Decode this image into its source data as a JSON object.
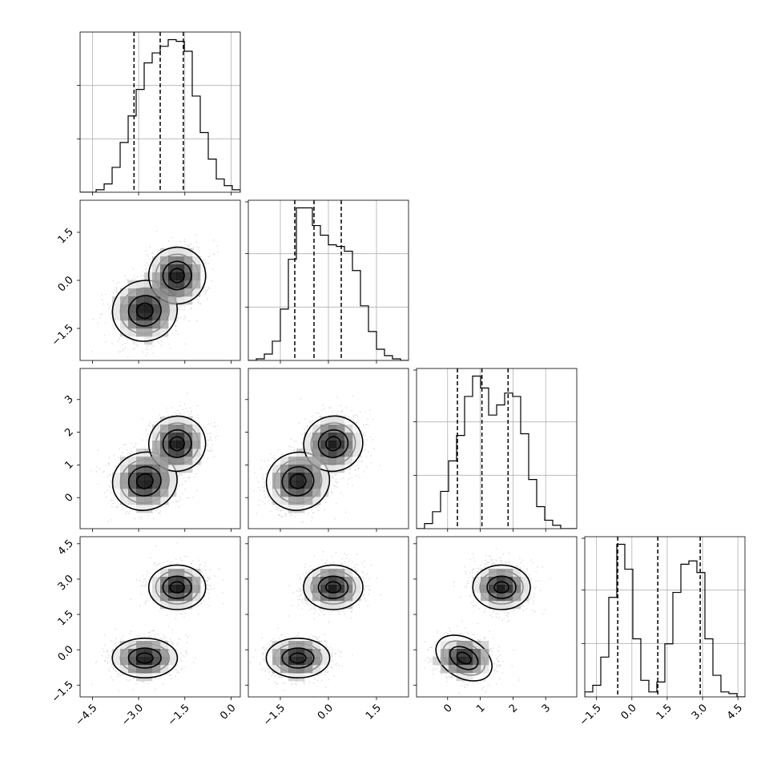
{
  "chart_data": {
    "type": "corner",
    "variables": [
      {
        "name": "",
        "range": [
          -4.9,
          0.3
        ],
        "ticks": [
          -4.5,
          -3.0,
          -1.5,
          0.0
        ],
        "tick_labels": [
          "−4.5",
          "−3.0",
          "−1.5",
          "0.0"
        ],
        "quantiles": [
          -3.15,
          -2.3,
          -1.55
        ],
        "hist_edges_from": -4.9,
        "hist_bin_width": 0.26,
        "hist_counts": [
          0.0,
          0.0,
          0.015,
          0.05,
          0.15,
          0.3,
          0.46,
          0.62,
          0.78,
          0.84,
          0.88,
          0.92,
          0.91,
          0.85,
          0.58,
          0.36,
          0.2,
          0.08,
          0.04,
          0.015
        ]
      },
      {
        "name": "",
        "range": [
          -2.5,
          2.5
        ],
        "ticks": [
          -1.5,
          0.0,
          1.5
        ],
        "tick_labels": [
          "−1.5",
          "0.0",
          "1.5"
        ],
        "quantiles": [
          -1.05,
          -0.45,
          0.4
        ],
        "hist_edges_from": -2.5,
        "hist_bin_width": 0.25,
        "hist_counts": [
          0.0,
          0.01,
          0.04,
          0.12,
          0.32,
          0.63,
          0.95,
          0.95,
          0.84,
          0.78,
          0.72,
          0.71,
          0.68,
          0.56,
          0.34,
          0.18,
          0.07,
          0.03,
          0.01,
          0.0
        ]
      },
      {
        "name": "",
        "range": [
          -0.95,
          3.95
        ],
        "ticks": [
          0,
          1,
          2,
          3
        ],
        "tick_labels": [
          "0",
          "1",
          "2",
          "3"
        ],
        "quantiles": [
          0.3,
          1.05,
          1.85
        ],
        "hist_edges_from": -0.95,
        "hist_bin_width": 0.245,
        "hist_counts": [
          0.0,
          0.03,
          0.1,
          0.22,
          0.4,
          0.55,
          0.78,
          0.9,
          0.83,
          0.67,
          0.73,
          0.8,
          0.78,
          0.56,
          0.29,
          0.13,
          0.05,
          0.02,
          0.0,
          0.0
        ]
      },
      {
        "name": "",
        "range": [
          -2.0,
          4.8
        ],
        "ticks": [
          -1.5,
          0.0,
          1.5,
          3.0,
          4.5
        ],
        "tick_labels": [
          "−1.5",
          "0.0",
          "1.5",
          "3.0",
          "4.5"
        ],
        "quantiles": [
          -0.6,
          1.1,
          2.9
        ],
        "hist_edges_from": -2.0,
        "hist_bin_width": 0.34,
        "hist_counts": [
          0.03,
          0.07,
          0.24,
          0.6,
          0.92,
          0.77,
          0.35,
          0.1,
          0.03,
          0.09,
          0.32,
          0.63,
          0.8,
          0.82,
          0.75,
          0.35,
          0.13,
          0.03,
          0.02,
          0.0
        ]
      }
    ],
    "joint_components": [
      {
        "weight": 0.5,
        "mean": [
          -2.8,
          -0.95,
          0.5,
          -0.35
        ],
        "sd": [
          0.48,
          0.45,
          0.42,
          0.4
        ]
      },
      {
        "weight": 0.5,
        "mean": [
          -1.75,
          0.15,
          1.65,
          2.65
        ],
        "sd": [
          0.42,
          0.42,
          0.4,
          0.45
        ]
      }
    ],
    "hist_grid": true,
    "contour_levels": 4
  }
}
